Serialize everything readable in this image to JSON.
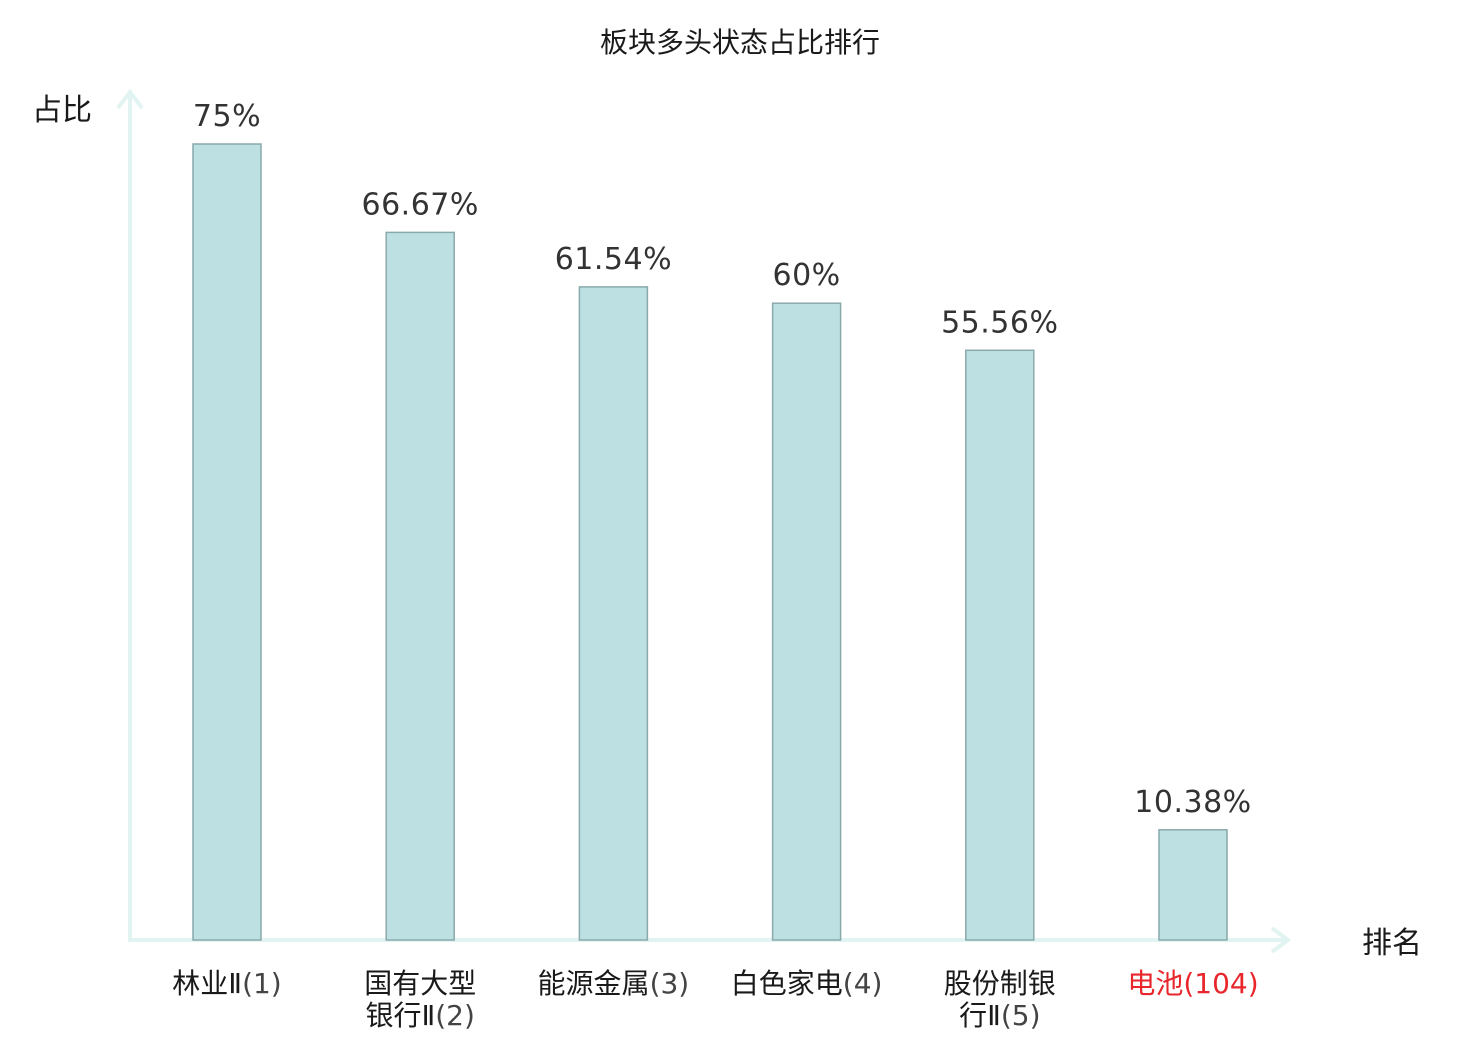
{
  "chart_data": {
    "type": "bar",
    "title": "板块多头状态占比排行",
    "ylabel": "占比",
    "xlabel": "排名",
    "unit": "%",
    "ylim": [
      0,
      80
    ],
    "grid": false,
    "categories": [
      {
        "lines": [
          "林业Ⅱ(1)"
        ],
        "name_lines": [
          "林业Ⅱ"
        ],
        "rank": "(1)"
      },
      {
        "lines": [
          "国有大型",
          "银行Ⅱ(2)"
        ],
        "name_lines": [
          "国有大型",
          "银行Ⅱ"
        ],
        "rank": "(2)"
      },
      {
        "lines": [
          "能源金属(3)"
        ],
        "name_lines": [
          "能源金属"
        ],
        "rank": "(3)"
      },
      {
        "lines": [
          "白色家电(4)"
        ],
        "name_lines": [
          "白色家电"
        ],
        "rank": "(4)"
      },
      {
        "lines": [
          "股份制银",
          "行Ⅱ(5)"
        ],
        "name_lines": [
          "股份制银",
          "行Ⅱ"
        ],
        "rank": "(5)"
      },
      {
        "lines": [
          "电池(104)"
        ],
        "name_lines": [
          "电池"
        ],
        "rank": "(104)",
        "highlight": true
      }
    ],
    "values": [
      75,
      66.67,
      61.54,
      60,
      55.56,
      10.38
    ],
    "value_labels": [
      "75%",
      "66.67%",
      "61.54%",
      "60%",
      "55.56%",
      "10.38%"
    ],
    "colors": {
      "bar_fill": "#bde0e2",
      "bar_stroke": "#8aa9ab",
      "axis": "#e1f4f1",
      "highlight_label": "#e8262b"
    }
  }
}
